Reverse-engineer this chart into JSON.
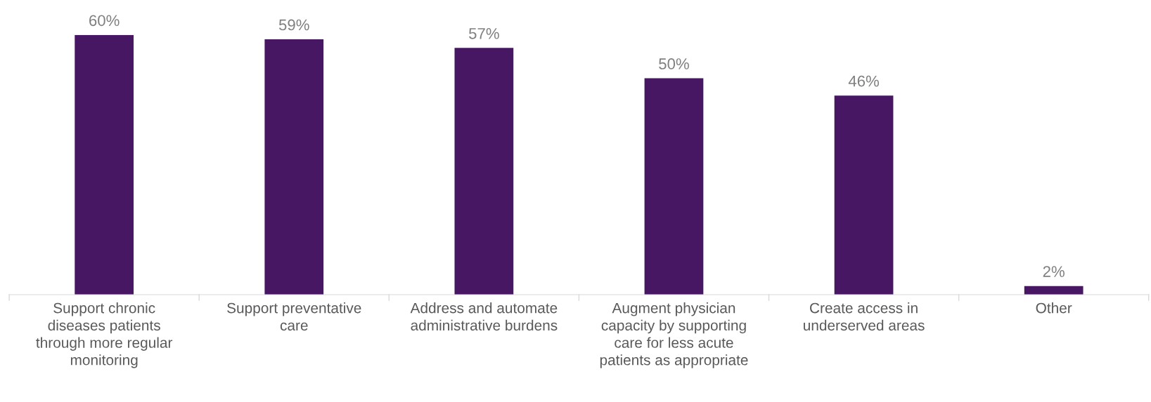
{
  "chart_data": {
    "type": "bar",
    "categories": [
      "Support chronic\ndiseases patients\nthrough more regular\nmonitoring",
      "Support preventative\ncare",
      "Address and automate\nadministrative burdens",
      "Augment physician\ncapacity by supporting\ncare for less acute\npatients as appropriate",
      "Create access in\nunderserved areas",
      "Other"
    ],
    "values": [
      60,
      59,
      57,
      50,
      46,
      2
    ],
    "value_labels": [
      "60%",
      "59%",
      "57%",
      "50%",
      "46%",
      "2%"
    ],
    "color": "#471764",
    "grid": false,
    "legend": false
  }
}
